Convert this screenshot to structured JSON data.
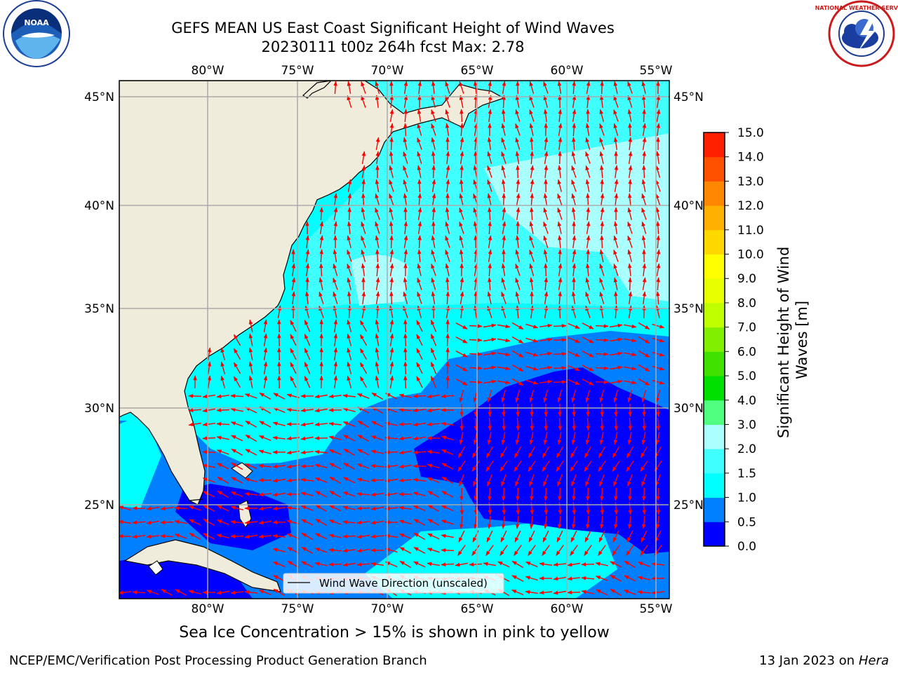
{
  "title_line1": "GEFS MEAN US East Coast Significant Height of Wind Waves",
  "title_line2": "20230111 t00z 264h fcst   Max: 2.78",
  "logos": {
    "left": "NOAA",
    "right": "NATIONAL WEATHER SERVICE"
  },
  "map": {
    "lon_labels": [
      "80°W",
      "75°W",
      "70°W",
      "65°W",
      "60°W",
      "55°W"
    ],
    "lat_labels": [
      "45°N",
      "40°N",
      "35°N",
      "30°N",
      "25°N"
    ],
    "legend_label": "Wind Wave Direction (unscaled)",
    "vector_color": "#ff0000",
    "land_color": "#efecdc",
    "ocean_shading": "significant height of wind waves (m)"
  },
  "colorbar": {
    "label": "Significant Height of Wind Waves [m]",
    "ticks": [
      "0.0",
      "0.5",
      "1.0",
      "1.5",
      "2.0",
      "3.0",
      "4.0",
      "5.0",
      "6.0",
      "7.0",
      "8.0",
      "9.0",
      "10.0",
      "11.0",
      "12.0",
      "13.0",
      "14.0",
      "15.0"
    ],
    "colors": [
      "#0000ff",
      "#0080ff",
      "#00ffff",
      "#40ffff",
      "#aaffff",
      "#50ff80",
      "#00e000",
      "#40e000",
      "#80f000",
      "#c0ff00",
      "#e8ff00",
      "#ffff00",
      "#ffd800",
      "#ffb000",
      "#ff8800",
      "#ff5000",
      "#ff2000"
    ]
  },
  "sea_ice_note": "Sea Ice Concentration > 15% is shown in pink to yellow",
  "footer_left": "NCEP/EMC/Verification Post Processing Product Generation Branch",
  "footer_date": "13 Jan 2023 on",
  "footer_machine": "Hera"
}
